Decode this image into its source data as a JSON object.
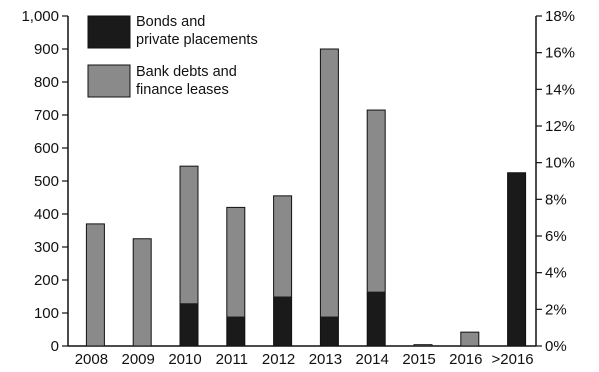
{
  "chart_data": {
    "type": "bar",
    "categories": [
      "2008",
      "2009",
      "2010",
      "2011",
      "2012",
      "2013",
      "2014",
      "2015",
      "2016",
      ">2016"
    ],
    "series": [
      {
        "name": "Bonds and private placements",
        "color": "#1a1a1a",
        "values": [
          0,
          0,
          130,
          90,
          150,
          90,
          165,
          0,
          0,
          525
        ]
      },
      {
        "name": "Bank debts and finance leases",
        "color": "#8a8a8a",
        "values": [
          370,
          325,
          415,
          330,
          305,
          810,
          550,
          4,
          42,
          0
        ]
      }
    ],
    "y_left": {
      "ticks": [
        "0",
        "100",
        "200",
        "300",
        "400",
        "500",
        "600",
        "700",
        "800",
        "900",
        "1,000"
      ],
      "ylim": [
        0,
        1000
      ]
    },
    "y_right": {
      "ticks": [
        "0%",
        "2%",
        "4%",
        "6%",
        "8%",
        "10%",
        "12%",
        "14%",
        "16%",
        "18%"
      ],
      "ylim": [
        0,
        18
      ]
    },
    "legend": {
      "placement": "top-left",
      "entries": [
        {
          "line1": "Bonds and",
          "line2": "private placements"
        },
        {
          "line1": "Bank debts and",
          "line2": "finance leases"
        }
      ]
    }
  }
}
